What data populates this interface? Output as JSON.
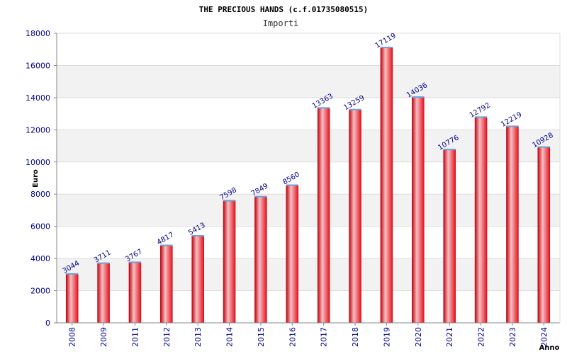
{
  "chart_data": {
    "type": "bar",
    "title": "THE PRECIOUS HANDS (c.f.01735080515)",
    "subtitle": "Importi",
    "xlabel": "Anno",
    "ylabel": "Euro",
    "ylim": [
      0,
      18000
    ],
    "yticks": [
      0,
      2000,
      4000,
      6000,
      8000,
      10000,
      12000,
      14000,
      16000,
      18000
    ],
    "categories": [
      "2008",
      "2009",
      "2011",
      "2012",
      "2013",
      "2014",
      "2015",
      "2016",
      "2017",
      "2018",
      "2019",
      "2020",
      "2021",
      "2022",
      "2023",
      "2024"
    ],
    "values": [
      3044,
      3711,
      3767,
      4817,
      5413,
      7598,
      7849,
      8560,
      13363,
      13259,
      17119,
      14036,
      10776,
      12792,
      12219,
      10928
    ],
    "colors": {
      "bar": "#e8101c",
      "bar_highlight": "#f4c0c4",
      "bar_top": "#6ea0d8",
      "band": "#f2f2f2",
      "grid": "#dddddd",
      "axis": "#888888",
      "tick_text": "#00008b"
    }
  }
}
